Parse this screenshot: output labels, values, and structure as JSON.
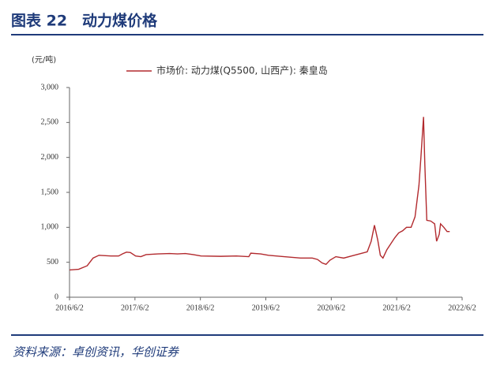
{
  "header": {
    "title": "图表 22　动力煤价格"
  },
  "chart_data": {
    "type": "line",
    "unit": "(元/吨)",
    "x": [
      2016.42,
      2016.56,
      2016.69,
      2016.78,
      2016.87,
      2017.05,
      2017.17,
      2017.23,
      2017.29,
      2017.35,
      2017.43,
      2017.51,
      2017.59,
      2017.77,
      2017.95,
      2018.07,
      2018.19,
      2018.31,
      2018.43,
      2018.73,
      2018.97,
      2019.16,
      2019.19,
      2019.34,
      2019.46,
      2019.7,
      2019.95,
      2020.13,
      2020.21,
      2020.28,
      2020.34,
      2020.4,
      2020.49,
      2020.61,
      2020.73,
      2020.85,
      2020.97,
      2021.03,
      2021.08,
      2021.13,
      2021.17,
      2021.21,
      2021.27,
      2021.39,
      2021.45,
      2021.51,
      2021.57,
      2021.64,
      2021.7,
      2021.76,
      2021.79,
      2021.83,
      2021.85,
      2021.88,
      2021.94,
      2022.0,
      2022.03,
      2022.07,
      2022.09,
      2022.14,
      2022.19,
      2022.23
    ],
    "series": [
      {
        "name": "市场价: 动力煤(Q5500, 山西产): 秦皇岛",
        "color": "#b22a2e",
        "values": [
          390,
          400,
          450,
          560,
          600,
          590,
          590,
          620,
          645,
          640,
          590,
          580,
          610,
          620,
          625,
          620,
          625,
          610,
          590,
          585,
          590,
          580,
          630,
          620,
          600,
          580,
          560,
          560,
          540,
          490,
          470,
          530,
          580,
          560,
          590,
          620,
          650,
          800,
          1030,
          820,
          600,
          560,
          680,
          850,
          920,
          950,
          1000,
          1000,
          1150,
          1600,
          2000,
          2580,
          1900,
          1100,
          1090,
          1050,
          800,
          900,
          1050,
          1000,
          940,
          940
        ]
      }
    ],
    "xlim": [
      2016.42,
      2022.42
    ],
    "xticks": [
      {
        "value": 2016.42,
        "label": "2016/6/2"
      },
      {
        "value": 2017.42,
        "label": "2017/6/2"
      },
      {
        "value": 2018.42,
        "label": "2018/6/2"
      },
      {
        "value": 2019.42,
        "label": "2019/6/2"
      },
      {
        "value": 2020.42,
        "label": "2020/6/2"
      },
      {
        "value": 2021.42,
        "label": "2021/6/2"
      },
      {
        "value": 2022.42,
        "label": "2022/6/2"
      }
    ],
    "ylim": [
      0,
      3000
    ],
    "yticks": [
      0,
      500,
      {
        "value": 1000,
        "label": "1,000"
      },
      {
        "value": 1500,
        "label": "1,500"
      },
      {
        "value": 2000,
        "label": "2,000"
      },
      {
        "value": 2500,
        "label": "2,500"
      },
      {
        "value": 3000,
        "label": "3,000"
      }
    ],
    "grid": false
  },
  "footer": {
    "source": "资料来源：卓创资讯，华创证券"
  }
}
